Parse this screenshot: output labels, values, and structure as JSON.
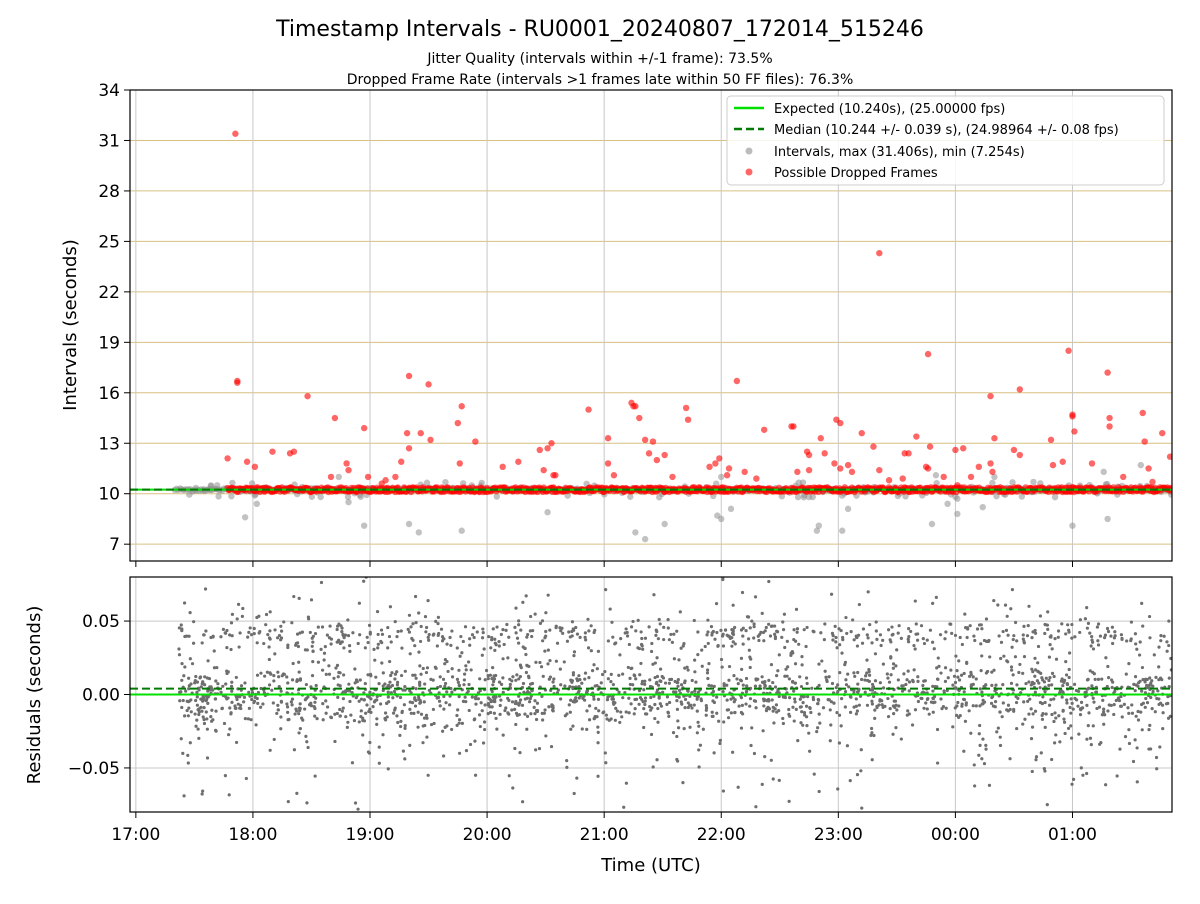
{
  "figure": {
    "title": "Timestamp Intervals - RU0001_20240807_172014_515246",
    "subtitle_line1": "Jitter Quality (intervals within +/-1 frame): 73.5%",
    "subtitle_line2": "Dropped Frame Rate (intervals >1 frames late within 50 FF files): 76.3%"
  },
  "colors": {
    "expected_line": "#00e000",
    "median_line": "#007a00",
    "intervals_points": "#909090",
    "dropped_points": "#ff0000",
    "residual_points": "#6e6e6e",
    "horizontal_grid_top": "#d8c080",
    "grid": "#c8c8c8"
  },
  "chart_data": [
    {
      "type": "scatter",
      "ylabel": "Intervals (seconds)",
      "xlabel": "",
      "xlim": [
        "16:57",
        "01:51"
      ],
      "ylim": [
        6,
        34
      ],
      "y_ticks": [
        "7",
        "10",
        "13",
        "16",
        "19",
        "22",
        "25",
        "28",
        "31",
        "34"
      ],
      "x_ticks": [
        "17:00",
        "18:00",
        "19:00",
        "20:00",
        "21:00",
        "22:00",
        "23:00",
        "00:00",
        "01:00"
      ],
      "grid": "on",
      "legend_position": "top-right",
      "reference_lines": [
        {
          "name": "Expected (10.240s), (25.00000 fps)",
          "y": 10.24,
          "style": "solid"
        },
        {
          "name": "Median (10.244 +/- 0.039 s), (24.98964 +/- 0.08 fps)",
          "y": 10.244,
          "style": "dashed"
        }
      ],
      "series": [
        {
          "name": "Intervals, max (31.406s), min (7.254s)",
          "marker": "circle",
          "x_range": [
            "17:20",
            "01:51"
          ],
          "baseline": 10.24,
          "points": [
            {
              "x": "17:56",
              "y": 8.6
            },
            {
              "x": "18:02",
              "y": 9.4
            },
            {
              "x": "18:44",
              "y": 11.0
            },
            {
              "x": "18:49",
              "y": 9.5
            },
            {
              "x": "18:57",
              "y": 8.1
            },
            {
              "x": "19:20",
              "y": 8.2
            },
            {
              "x": "19:25",
              "y": 7.7
            },
            {
              "x": "19:47",
              "y": 7.8
            },
            {
              "x": "20:31",
              "y": 8.9
            },
            {
              "x": "21:16",
              "y": 7.7
            },
            {
              "x": "21:21",
              "y": 7.3
            },
            {
              "x": "21:31",
              "y": 8.2
            },
            {
              "x": "21:58",
              "y": 8.7
            },
            {
              "x": "22:00",
              "y": 8.5
            },
            {
              "x": "22:00",
              "y": 11.0
            },
            {
              "x": "22:05",
              "y": 9.1
            },
            {
              "x": "22:45",
              "y": 9.8
            },
            {
              "x": "22:49",
              "y": 7.8
            },
            {
              "x": "22:50",
              "y": 8.1
            },
            {
              "x": "23:02",
              "y": 7.8
            },
            {
              "x": "23:05",
              "y": 9.1
            },
            {
              "x": "23:43",
              "y": 9.9
            },
            {
              "x": "23:48",
              "y": 8.2
            },
            {
              "x": "23:56",
              "y": 9.4
            },
            {
              "x": "00:01",
              "y": 8.8
            },
            {
              "x": "00:01",
              "y": 9.7
            },
            {
              "x": "00:14",
              "y": 9.2
            },
            {
              "x": "00:40",
              "y": 10.7
            },
            {
              "x": "01:00",
              "y": 8.1
            },
            {
              "x": "01:16",
              "y": 11.3
            },
            {
              "x": "01:18",
              "y": 8.5
            },
            {
              "x": "01:35",
              "y": 11.7
            },
            {
              "x": "00:20",
              "y": 11.0
            },
            {
              "x": "23:50",
              "y": 11.1
            }
          ]
        },
        {
          "name": "Possible Dropped Frames",
          "marker": "circle",
          "x_range": [
            "17:47",
            "01:51"
          ],
          "baseline": 10.24,
          "points": [
            {
              "x": "17:51",
              "y": 31.4
            },
            {
              "x": "17:52",
              "y": 16.7
            },
            {
              "x": "17:52",
              "y": 16.6
            },
            {
              "x": "17:47",
              "y": 12.1
            },
            {
              "x": "17:57",
              "y": 11.9
            },
            {
              "x": "18:01",
              "y": 11.6
            },
            {
              "x": "18:10",
              "y": 12.5
            },
            {
              "x": "18:19",
              "y": 12.4
            },
            {
              "x": "18:21",
              "y": 12.5
            },
            {
              "x": "18:28",
              "y": 15.8
            },
            {
              "x": "18:40",
              "y": 11.0
            },
            {
              "x": "18:42",
              "y": 14.5
            },
            {
              "x": "18:48",
              "y": 11.8
            },
            {
              "x": "18:49",
              "y": 11.4
            },
            {
              "x": "18:57",
              "y": 13.9
            },
            {
              "x": "18:59",
              "y": 11.0
            },
            {
              "x": "19:06",
              "y": 10.6
            },
            {
              "x": "19:08",
              "y": 10.8
            },
            {
              "x": "19:13",
              "y": 11.0
            },
            {
              "x": "19:16",
              "y": 11.9
            },
            {
              "x": "19:19",
              "y": 13.6
            },
            {
              "x": "19:20",
              "y": 12.7
            },
            {
              "x": "19:20",
              "y": 17.0
            },
            {
              "x": "19:26",
              "y": 13.6
            },
            {
              "x": "19:30",
              "y": 16.5
            },
            {
              "x": "19:31",
              "y": 13.2
            },
            {
              "x": "19:45",
              "y": 14.2
            },
            {
              "x": "19:46",
              "y": 11.8
            },
            {
              "x": "19:47",
              "y": 15.2
            },
            {
              "x": "19:54",
              "y": 13.1
            },
            {
              "x": "20:08",
              "y": 11.6
            },
            {
              "x": "20:16",
              "y": 11.9
            },
            {
              "x": "20:27",
              "y": 12.6
            },
            {
              "x": "20:29",
              "y": 11.4
            },
            {
              "x": "20:31",
              "y": 12.7
            },
            {
              "x": "20:33",
              "y": 13.0
            },
            {
              "x": "20:34",
              "y": 11.1
            },
            {
              "x": "20:35",
              "y": 11.1
            },
            {
              "x": "20:52",
              "y": 15.0
            },
            {
              "x": "21:02",
              "y": 13.3
            },
            {
              "x": "21:02",
              "y": 11.8
            },
            {
              "x": "21:05",
              "y": 11.1
            },
            {
              "x": "21:14",
              "y": 15.4
            },
            {
              "x": "21:15",
              "y": 15.2
            },
            {
              "x": "21:16",
              "y": 15.2
            },
            {
              "x": "21:18",
              "y": 14.5
            },
            {
              "x": "21:21",
              "y": 13.2
            },
            {
              "x": "21:23",
              "y": 12.4
            },
            {
              "x": "21:25",
              "y": 13.1
            },
            {
              "x": "21:27",
              "y": 12.0
            },
            {
              "x": "21:31",
              "y": 12.3
            },
            {
              "x": "21:35",
              "y": 11.0
            },
            {
              "x": "21:42",
              "y": 15.1
            },
            {
              "x": "21:43",
              "y": 14.4
            },
            {
              "x": "21:54",
              "y": 11.6
            },
            {
              "x": "21:57",
              "y": 11.8
            },
            {
              "x": "21:59",
              "y": 12.1
            },
            {
              "x": "22:03",
              "y": 11.1
            },
            {
              "x": "22:04",
              "y": 11.5
            },
            {
              "x": "22:08",
              "y": 16.7
            },
            {
              "x": "22:12",
              "y": 11.3
            },
            {
              "x": "22:18",
              "y": 10.9
            },
            {
              "x": "22:22",
              "y": 13.8
            },
            {
              "x": "22:36",
              "y": 14.0
            },
            {
              "x": "22:37",
              "y": 14.0
            },
            {
              "x": "22:39",
              "y": 11.3
            },
            {
              "x": "22:44",
              "y": 12.5
            },
            {
              "x": "22:45",
              "y": 12.3
            },
            {
              "x": "22:45",
              "y": 11.4
            },
            {
              "x": "22:51",
              "y": 13.3
            },
            {
              "x": "22:53",
              "y": 12.4
            },
            {
              "x": "22:58",
              "y": 11.8
            },
            {
              "x": "22:59",
              "y": 14.4
            },
            {
              "x": "23:01",
              "y": 14.2
            },
            {
              "x": "23:01",
              "y": 11.5
            },
            {
              "x": "23:05",
              "y": 11.7
            },
            {
              "x": "23:07",
              "y": 11.3
            },
            {
              "x": "23:12",
              "y": 13.6
            },
            {
              "x": "23:18",
              "y": 12.8
            },
            {
              "x": "23:21",
              "y": 11.4
            },
            {
              "x": "23:21",
              "y": 24.3
            },
            {
              "x": "23:26",
              "y": 10.8
            },
            {
              "x": "23:33",
              "y": 10.9
            },
            {
              "x": "23:34",
              "y": 12.4
            },
            {
              "x": "23:36",
              "y": 12.4
            },
            {
              "x": "23:40",
              "y": 13.4
            },
            {
              "x": "23:45",
              "y": 11.6
            },
            {
              "x": "23:46",
              "y": 11.5
            },
            {
              "x": "23:46",
              "y": 18.3
            },
            {
              "x": "23:47",
              "y": 12.8
            },
            {
              "x": "23:54",
              "y": 11.0
            },
            {
              "x": "24:00",
              "y": 12.6
            },
            {
              "x": "24:01",
              "y": 10.5
            },
            {
              "x": "24:04",
              "y": 12.7
            },
            {
              "x": "24:08",
              "y": 11.0
            },
            {
              "x": "24:12",
              "y": 11.6
            },
            {
              "x": "24:18",
              "y": 11.8
            },
            {
              "x": "24:18",
              "y": 15.8
            },
            {
              "x": "24:19",
              "y": 11.3
            },
            {
              "x": "24:20",
              "y": 13.3
            },
            {
              "x": "24:30",
              "y": 12.6
            },
            {
              "x": "24:33",
              "y": 12.3
            },
            {
              "x": "24:33",
              "y": 16.2
            },
            {
              "x": "24:49",
              "y": 13.2
            },
            {
              "x": "24:50",
              "y": 11.7
            },
            {
              "x": "24:55",
              "y": 11.9
            },
            {
              "x": "24:58",
              "y": 18.5
            },
            {
              "x": "25:00",
              "y": 14.6
            },
            {
              "x": "25:00",
              "y": 14.7
            },
            {
              "x": "25:01",
              "y": 13.7
            },
            {
              "x": "25:10",
              "y": 11.8
            },
            {
              "x": "25:18",
              "y": 17.2
            },
            {
              "x": "25:19",
              "y": 14.0
            },
            {
              "x": "25:19",
              "y": 14.5
            },
            {
              "x": "25:26",
              "y": 11.0
            },
            {
              "x": "25:36",
              "y": 14.8
            },
            {
              "x": "25:37",
              "y": 13.1
            },
            {
              "x": "25:39",
              "y": 11.5
            },
            {
              "x": "25:41",
              "y": 10.7
            },
            {
              "x": "25:46",
              "y": 13.6
            },
            {
              "x": "25:50",
              "y": 12.2
            }
          ]
        }
      ]
    },
    {
      "type": "scatter",
      "ylabel": "Residuals (seconds)",
      "xlabel": "Time (UTC)",
      "xlim": [
        "16:57",
        "01:51"
      ],
      "ylim": [
        -0.08,
        0.08
      ],
      "y_ticks": [
        "−0.05",
        "0.00",
        "0.05"
      ],
      "x_ticks": [
        "17:00",
        "18:00",
        "19:00",
        "20:00",
        "21:00",
        "22:00",
        "23:00",
        "00:00",
        "01:00"
      ],
      "grid": "on",
      "reference_lines": [
        {
          "name": "Expected",
          "y": 0.0,
          "style": "solid"
        },
        {
          "name": "Median",
          "y": 0.004,
          "style": "dashed"
        }
      ],
      "series": [
        {
          "name": "",
          "marker": "dot",
          "x_range": [
            "17:22",
            "01:51"
          ],
          "clusters": [
            {
              "center": 0.0,
              "spread": 0.01,
              "share": 0.55
            },
            {
              "center": 0.04,
              "spread": 0.006,
              "share": 0.2
            },
            {
              "center": 0.0,
              "spread": 0.04,
              "share": 0.25
            }
          ],
          "range": [
            -0.08,
            0.08
          ]
        }
      ]
    }
  ],
  "legend": [
    {
      "label": "Expected (10.240s), (25.00000 fps)",
      "kind": "solid-line"
    },
    {
      "label": "Median (10.244 +/- 0.039 s), (24.98964 +/- 0.08 fps)",
      "kind": "dashed-line"
    },
    {
      "label": "Intervals, max (31.406s), min (7.254s)",
      "kind": "grey-dot"
    },
    {
      "label": "Possible Dropped Frames",
      "kind": "red-dot"
    }
  ]
}
